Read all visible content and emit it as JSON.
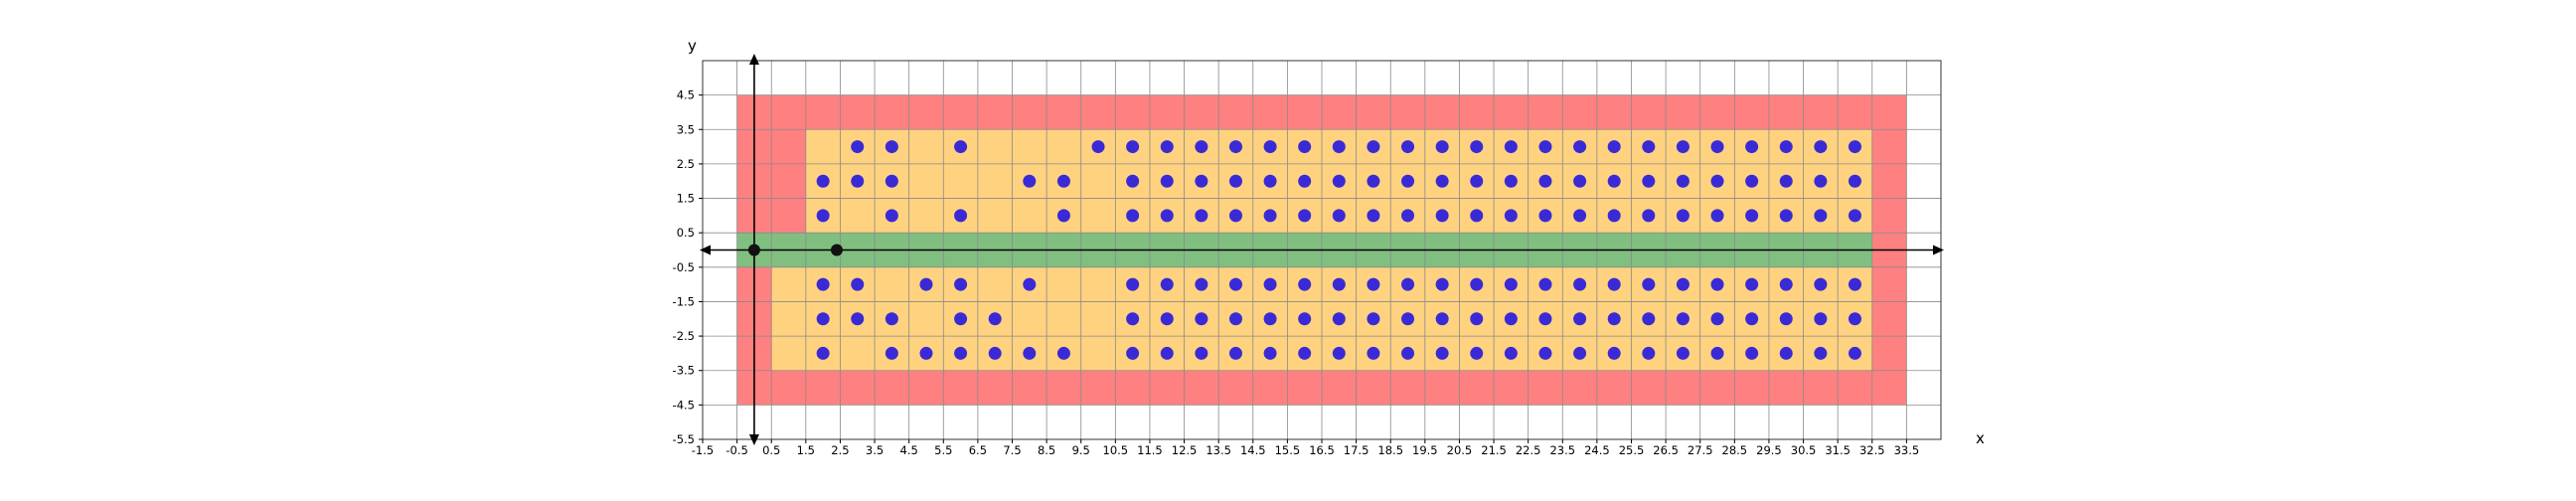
{
  "chart_data": {
    "type": "scatter",
    "title": "",
    "xlabel": "x",
    "ylabel": "y",
    "xlim": [
      -1.5,
      34.5
    ],
    "ylim": [
      -5.5,
      5.5
    ],
    "xticks": [
      -1.5,
      -0.5,
      0.5,
      1.5,
      2.5,
      3.5,
      4.5,
      5.5,
      6.5,
      7.5,
      8.5,
      9.5,
      10.5,
      11.5,
      12.5,
      13.5,
      14.5,
      15.5,
      16.5,
      17.5,
      18.5,
      19.5,
      20.5,
      21.5,
      22.5,
      23.5,
      24.5,
      25.5,
      26.5,
      27.5,
      28.5,
      29.5,
      30.5,
      31.5,
      32.5,
      33.5
    ],
    "xtick_labels": [
      "-1.5",
      "-0.5",
      "0.5",
      "1.5",
      "2.5",
      "3.5",
      "4.5",
      "5.5",
      "6.5",
      "7.5",
      "8.5",
      "9.5",
      "10.5",
      "11.5",
      "12.5",
      "13.5",
      "14.5",
      "15.5",
      "16.5",
      "17.5",
      "18.5",
      "19.5",
      "20.5",
      "21.5",
      "22.5",
      "23.5",
      "24.5",
      "25.5",
      "26.5",
      "27.5",
      "28.5",
      "29.5",
      "30.5",
      "31.5",
      "32.5",
      "33.5"
    ],
    "yticks": [
      4.5,
      3.5,
      2.5,
      1.5,
      0.5,
      -0.5,
      -1.5,
      -2.5,
      -3.5,
      -4.5,
      -5.5
    ],
    "ytick_labels": [
      "4.5",
      "3.5",
      "2.5",
      "1.5",
      "0.5",
      "-0.5",
      "-1.5",
      "-2.5",
      "-3.5",
      "-4.5",
      "-5.5"
    ],
    "grid": true,
    "regions": [
      {
        "kind": "outer",
        "color": "#ff8080",
        "rects": [
          [
            -0.5,
            33.5,
            -4.5,
            4.5
          ]
        ]
      },
      {
        "kind": "inner",
        "color": "#ffd280",
        "rects": [
          [
            1.5,
            32.5,
            0.5,
            3.5
          ],
          [
            0.5,
            32.5,
            -3.5,
            -0.5
          ]
        ]
      },
      {
        "kind": "corridor",
        "color": "#80bf80",
        "rects": [
          [
            -0.5,
            32.5,
            -0.5,
            0.5
          ]
        ]
      }
    ],
    "markers": [
      {
        "x": 0,
        "y": 0,
        "color": "#111111"
      },
      {
        "x": 2.4,
        "y": 0,
        "color": "#111111"
      }
    ],
    "dot_color": "#3a2ad6",
    "dense_block": {
      "x_from": 11,
      "x_to": 32,
      "rows": [
        3,
        2,
        1,
        -1,
        -2,
        -3
      ]
    },
    "points": [
      [
        3,
        3
      ],
      [
        4,
        3
      ],
      [
        6,
        3
      ],
      [
        10,
        3
      ],
      [
        11,
        3
      ],
      [
        2,
        2
      ],
      [
        3,
        2
      ],
      [
        4,
        2
      ],
      [
        8,
        2
      ],
      [
        9,
        2
      ],
      [
        2,
        1
      ],
      [
        4,
        1
      ],
      [
        6,
        1
      ],
      [
        9,
        1
      ],
      [
        11,
        1
      ],
      [
        2,
        -1
      ],
      [
        3,
        -1
      ],
      [
        5,
        -1
      ],
      [
        6,
        -1
      ],
      [
        8,
        -1
      ],
      [
        2,
        -2
      ],
      [
        3,
        -2
      ],
      [
        4,
        -2
      ],
      [
        6,
        -2
      ],
      [
        7,
        -2
      ],
      [
        2,
        -3
      ],
      [
        4,
        -3
      ],
      [
        5,
        -3
      ],
      [
        6,
        -3
      ],
      [
        7,
        -3
      ],
      [
        8,
        -3
      ],
      [
        9,
        -3
      ]
    ]
  }
}
